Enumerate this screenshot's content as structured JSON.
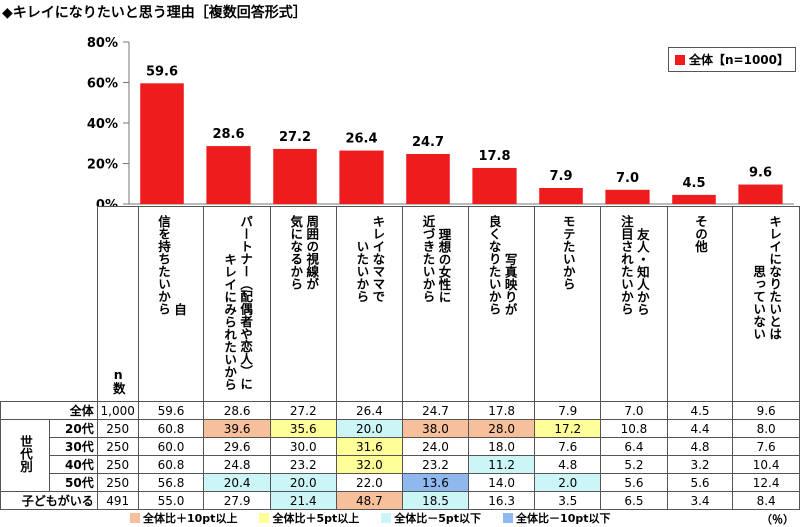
{
  "title": "◆キレイになりたいと思う理由［複数回答形式］",
  "colors": {
    "bar": "#ee1c1c",
    "hl_plus10": "#f7c09a",
    "hl_plus5": "#ffff99",
    "hl_minus5": "#ccf5f7",
    "hl_minus10": "#8fb8ee",
    "grid": "#ffffff"
  },
  "chart_data": {
    "type": "bar",
    "categories": [
      "自信を持ちたいから",
      "パートナー（配偶者や恋人）にキレイにみられたいから",
      "周囲の視線が気になるから",
      "キレイなママでいたいから",
      "理想の女性に近づきたいから",
      "写真映りが良くなりたいから",
      "モテたいから",
      "友人・知人から注目されたいから",
      "その他",
      "キレイになりたいとは思っていない"
    ],
    "values": [
      59.6,
      28.6,
      27.2,
      26.4,
      24.7,
      17.8,
      7.9,
      7.0,
      4.5,
      9.6
    ],
    "legend": "全体【n=1000】",
    "ylim": [
      0,
      80
    ],
    "yticks": [
      "0%",
      "20%",
      "40%",
      "60%",
      "80%"
    ]
  },
  "header_lines": [
    [
      "自",
      "信を持ちたいから"
    ],
    [
      "パートナー（配偶者や恋人）に",
      "キレイにみられたいから"
    ],
    [
      "周囲の視線が",
      "気になるから"
    ],
    [
      "キレイなママで",
      "いたいから"
    ],
    [
      "理想の女性に",
      "近づきたいから"
    ],
    [
      "写真映りが",
      "良くなりたいから"
    ],
    [
      "モテたいから"
    ],
    [
      "友人・知人から",
      "注目されたいから"
    ],
    [
      "その他"
    ],
    [
      "キレイになりたいとは",
      "思っていない"
    ]
  ],
  "n_label": "n数",
  "group_label": "世代別",
  "rows": [
    {
      "label": "全体",
      "n": "1,000",
      "cells": [
        "59.6",
        "28.6",
        "27.2",
        "26.4",
        "24.7",
        "17.8",
        "7.9",
        "7.0",
        "4.5",
        "9.6"
      ],
      "hl": [
        "",
        "",
        "",
        "",
        "",
        "",
        "",
        "",
        "",
        ""
      ]
    },
    {
      "label": "20代",
      "n": "250",
      "cells": [
        "60.8",
        "39.6",
        "35.6",
        "20.0",
        "38.0",
        "28.0",
        "17.2",
        "10.8",
        "4.4",
        "8.0"
      ],
      "hl": [
        "",
        "p10",
        "p5",
        "m5",
        "p10",
        "p10",
        "p5",
        "",
        "",
        ""
      ]
    },
    {
      "label": "30代",
      "n": "250",
      "cells": [
        "60.0",
        "29.6",
        "30.0",
        "31.6",
        "24.0",
        "18.0",
        "7.6",
        "6.4",
        "4.8",
        "7.6"
      ],
      "hl": [
        "",
        "",
        "",
        "p5",
        "",
        "",
        "",
        "",
        "",
        ""
      ]
    },
    {
      "label": "40代",
      "n": "250",
      "cells": [
        "60.8",
        "24.8",
        "23.2",
        "32.0",
        "23.2",
        "11.2",
        "4.8",
        "5.2",
        "3.2",
        "10.4"
      ],
      "hl": [
        "",
        "",
        "",
        "p5",
        "",
        "m5",
        "",
        "",
        "",
        ""
      ]
    },
    {
      "label": "50代",
      "n": "250",
      "cells": [
        "56.8",
        "20.4",
        "20.0",
        "22.0",
        "13.6",
        "14.0",
        "2.0",
        "5.6",
        "5.6",
        "12.4"
      ],
      "hl": [
        "",
        "m5",
        "m5",
        "",
        "m10",
        "",
        "m5",
        "",
        "",
        ""
      ]
    },
    {
      "label": "子どもがいる",
      "n": "491",
      "cells": [
        "55.0",
        "27.9",
        "21.4",
        "48.7",
        "18.5",
        "16.3",
        "3.5",
        "6.5",
        "3.4",
        "8.4"
      ],
      "hl": [
        "",
        "",
        "m5",
        "p10",
        "m5",
        "",
        "",
        "",
        "",
        ""
      ]
    }
  ],
  "footer": [
    "全体比＋10pt以上",
    "全体比＋5pt以上",
    "全体比－5pt以下",
    "全体比－10pt以下"
  ],
  "unit": "（％）"
}
